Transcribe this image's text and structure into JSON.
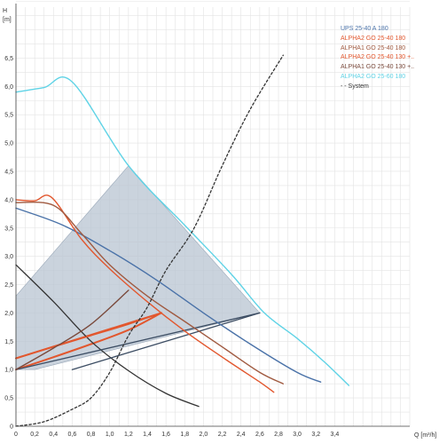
{
  "chart_data": {
    "type": "line",
    "xlabel": "Q [m³/h]",
    "ylabel": "H",
    "yunit": "[m]",
    "xlim": [
      0,
      4.2
    ],
    "ylim": [
      0,
      7.4
    ],
    "xticks": [
      0,
      0.2,
      0.4,
      0.6,
      0.8,
      1.0,
      1.2,
      1.4,
      1.6,
      1.8,
      2.0,
      2.2,
      2.4,
      2.6,
      2.8,
      3.0,
      3.2,
      3.4
    ],
    "xtick_labels": [
      "0",
      "0,2",
      "0,4",
      "0,6",
      "0,8",
      "1,0",
      "1,2",
      "1,4",
      "1,6",
      "1,8",
      "2,0",
      "2,2",
      "2,4",
      "2,6",
      "2,8",
      "3,0",
      "3,2",
      "3,4"
    ],
    "yticks": [
      0,
      0.5,
      1.0,
      1.5,
      2.0,
      2.5,
      3.0,
      3.5,
      4.0,
      4.5,
      5.0,
      5.5,
      6.0,
      6.5
    ],
    "ytick_labels": [
      "0",
      "0,5",
      "1,0",
      "1,5",
      "2,0",
      "2,5",
      "3,0",
      "3,5",
      "4,0",
      "4,5",
      "5,0",
      "5,5",
      "6,0",
      "6,5"
    ],
    "grid": true,
    "legend_position": "top-right",
    "operating_region": {
      "fill_color": "#b8c4d2",
      "points": [
        [
          0,
          2.3
        ],
        [
          1.2,
          4.6
        ],
        [
          2.6,
          2.0
        ],
        [
          0.2,
          1.0
        ],
        [
          0,
          1.0
        ]
      ]
    },
    "series": [
      {
        "name": "UPS 25-40 A 180",
        "color": "#4a72a8",
        "dash": "solid",
        "points": [
          [
            0,
            3.85
          ],
          [
            0.5,
            3.55
          ],
          [
            1.0,
            3.1
          ],
          [
            1.5,
            2.58
          ],
          [
            2.0,
            2.0
          ],
          [
            2.5,
            1.45
          ],
          [
            3.0,
            0.95
          ],
          [
            3.25,
            0.78
          ]
        ]
      },
      {
        "name": "ALPHA2 GO 25-40 180",
        "color": "#e2572e",
        "dash": "solid",
        "points": [
          [
            0,
            4.0
          ],
          [
            0.2,
            3.98
          ],
          [
            0.38,
            4.04
          ],
          [
            0.7,
            3.3
          ],
          [
            1.0,
            2.78
          ],
          [
            1.4,
            2.2
          ],
          [
            1.8,
            1.68
          ],
          [
            2.2,
            1.22
          ],
          [
            2.6,
            0.78
          ],
          [
            2.75,
            0.6
          ]
        ]
      },
      {
        "name": "ALPHA1 GO 25-40 180",
        "color": "#a05a40",
        "dash": "solid",
        "points": [
          [
            0,
            3.95
          ],
          [
            0.4,
            3.9
          ],
          [
            0.7,
            3.4
          ],
          [
            1.0,
            2.85
          ],
          [
            1.4,
            2.3
          ],
          [
            1.8,
            1.85
          ],
          [
            2.2,
            1.4
          ],
          [
            2.6,
            0.95
          ],
          [
            2.85,
            0.75
          ]
        ]
      },
      {
        "name": "ALPHA2 GO 25-40 130 +..",
        "color": "#e2572e",
        "dash": "solid",
        "points": [
          [
            0,
            1.2
          ],
          [
            0.4,
            1.4
          ],
          [
            0.8,
            1.6
          ],
          [
            1.2,
            1.8
          ],
          [
            1.55,
            2.0
          ]
        ]
      },
      {
        "name": "ALPHA1 GO 25-40 130 +..",
        "color": "#7a4a3c",
        "dash": "solid",
        "points": [
          [
            0,
            1.0
          ],
          [
            0.4,
            1.38
          ],
          [
            0.8,
            1.8
          ],
          [
            1.2,
            2.4
          ]
        ]
      },
      {
        "name": "ALPHA2 GO 25-60 180",
        "color": "#5fd3e6",
        "dash": "solid",
        "points": [
          [
            0,
            5.9
          ],
          [
            0.3,
            5.98
          ],
          [
            0.6,
            6.08
          ],
          [
            1.2,
            4.6
          ],
          [
            1.8,
            3.55
          ],
          [
            2.3,
            2.68
          ],
          [
            2.65,
            2.0
          ],
          [
            3.0,
            1.55
          ],
          [
            3.3,
            1.12
          ],
          [
            3.55,
            0.72
          ]
        ]
      },
      {
        "name": "System",
        "color": "#333333",
        "dash": "dashed",
        "points": [
          [
            0,
            0
          ],
          [
            0.3,
            0.08
          ],
          [
            0.6,
            0.3
          ],
          [
            0.8,
            0.5
          ],
          [
            1.0,
            0.95
          ],
          [
            1.2,
            1.6
          ],
          [
            1.4,
            2.1
          ],
          [
            1.6,
            2.75
          ],
          [
            1.9,
            3.5
          ],
          [
            2.2,
            4.6
          ],
          [
            2.5,
            5.6
          ],
          [
            2.85,
            6.55
          ]
        ]
      }
    ],
    "unlabeled_curves": [
      {
        "color": "#e2572e",
        "points": [
          [
            0,
            1.2
          ],
          [
            1.55,
            2.0
          ]
        ]
      },
      {
        "color": "#e2572e",
        "points": [
          [
            0,
            1.0
          ],
          [
            0.4,
            1.22
          ],
          [
            0.8,
            1.45
          ],
          [
            1.2,
            1.7
          ],
          [
            1.55,
            2.0
          ]
        ]
      },
      {
        "color": "#333333",
        "points": [
          [
            0,
            2.85
          ],
          [
            0.4,
            2.2
          ],
          [
            0.8,
            1.5
          ],
          [
            1.2,
            0.98
          ],
          [
            1.6,
            0.58
          ],
          [
            1.95,
            0.35
          ]
        ]
      },
      {
        "color": "#3c4d63",
        "points": [
          [
            0,
            1.0
          ],
          [
            2.6,
            2.0
          ]
        ]
      },
      {
        "color": "#3c4d63",
        "points": [
          [
            0.6,
            1.0
          ],
          [
            2.6,
            2.0
          ]
        ]
      }
    ]
  },
  "legend": {
    "items": [
      {
        "label": "UPS 25-40 A 180",
        "color": "#4a72a8"
      },
      {
        "label": "ALPHA2 GO 25-40 180",
        "color": "#e2572e"
      },
      {
        "label": "ALPHA1 GO 25-40 180",
        "color": "#a05a40"
      },
      {
        "label": "ALPHA2 GO 25-40 130 +..",
        "color": "#e2572e"
      },
      {
        "label": "ALPHA1 GO 25-40 130 +..",
        "color": "#7a4a3c"
      },
      {
        "label": "ALPHA2 GO 25-60 180",
        "color": "#5fd3e6"
      },
      {
        "label": "- - System",
        "color": "#333333"
      }
    ]
  }
}
